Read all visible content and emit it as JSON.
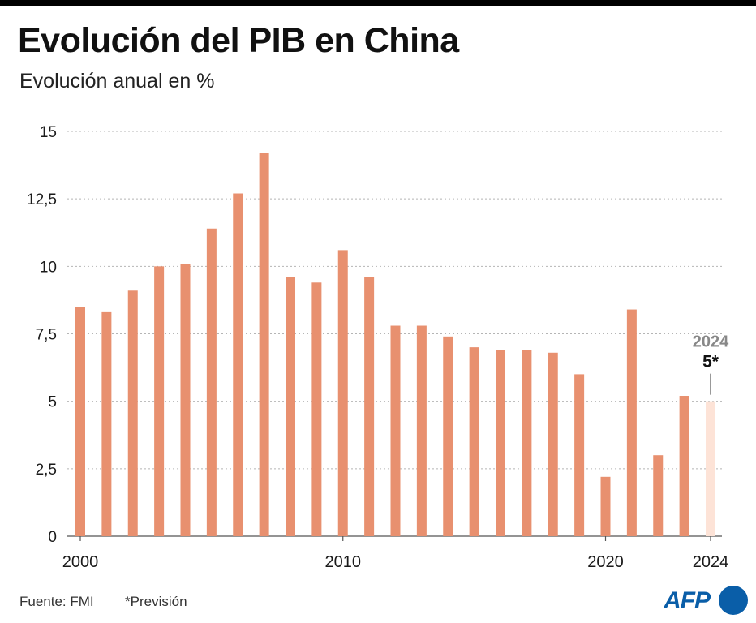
{
  "header": {
    "title": "Evolución del PIB en China",
    "subtitle": "Evolución anual en %"
  },
  "footer": {
    "source": "Fuente: FMI",
    "note": "*Previsión",
    "logo": "AFP"
  },
  "colors": {
    "bar": "#e8906f",
    "forecast_bar": "#fde3d7",
    "grid": "#b5b5b5",
    "axis_text": "#1a1a1a",
    "annotation_year": "#888888",
    "logo": "#0a5ea8"
  },
  "chart_data": {
    "type": "bar",
    "categories": [
      "2000",
      "2001",
      "2002",
      "2003",
      "2004",
      "2005",
      "2006",
      "2007",
      "2008",
      "2009",
      "2010",
      "2011",
      "2012",
      "2013",
      "2014",
      "2015",
      "2016",
      "2017",
      "2018",
      "2019",
      "2020",
      "2021",
      "2022",
      "2023",
      "2024"
    ],
    "values": [
      8.5,
      8.3,
      9.1,
      10.0,
      10.1,
      11.4,
      12.7,
      14.2,
      9.6,
      9.4,
      10.6,
      9.6,
      7.8,
      7.8,
      7.4,
      7.0,
      6.9,
      6.9,
      6.8,
      6.0,
      2.2,
      8.4,
      3.0,
      5.2,
      5.0
    ],
    "forecast": [
      false,
      false,
      false,
      false,
      false,
      false,
      false,
      false,
      false,
      false,
      false,
      false,
      false,
      false,
      false,
      false,
      false,
      false,
      false,
      false,
      false,
      false,
      false,
      false,
      true
    ],
    "ylim": [
      0,
      15
    ],
    "yticks": [
      0,
      2.5,
      5,
      7.5,
      10,
      12.5,
      15
    ],
    "ytick_labels": [
      "0",
      "2,5",
      "5",
      "7,5",
      "10",
      "12,5",
      "15"
    ],
    "xtick_labels": [
      "2000",
      "2010",
      "2020",
      "2024"
    ],
    "grid": true,
    "annotation": {
      "year": "2024",
      "value": "5*"
    }
  }
}
